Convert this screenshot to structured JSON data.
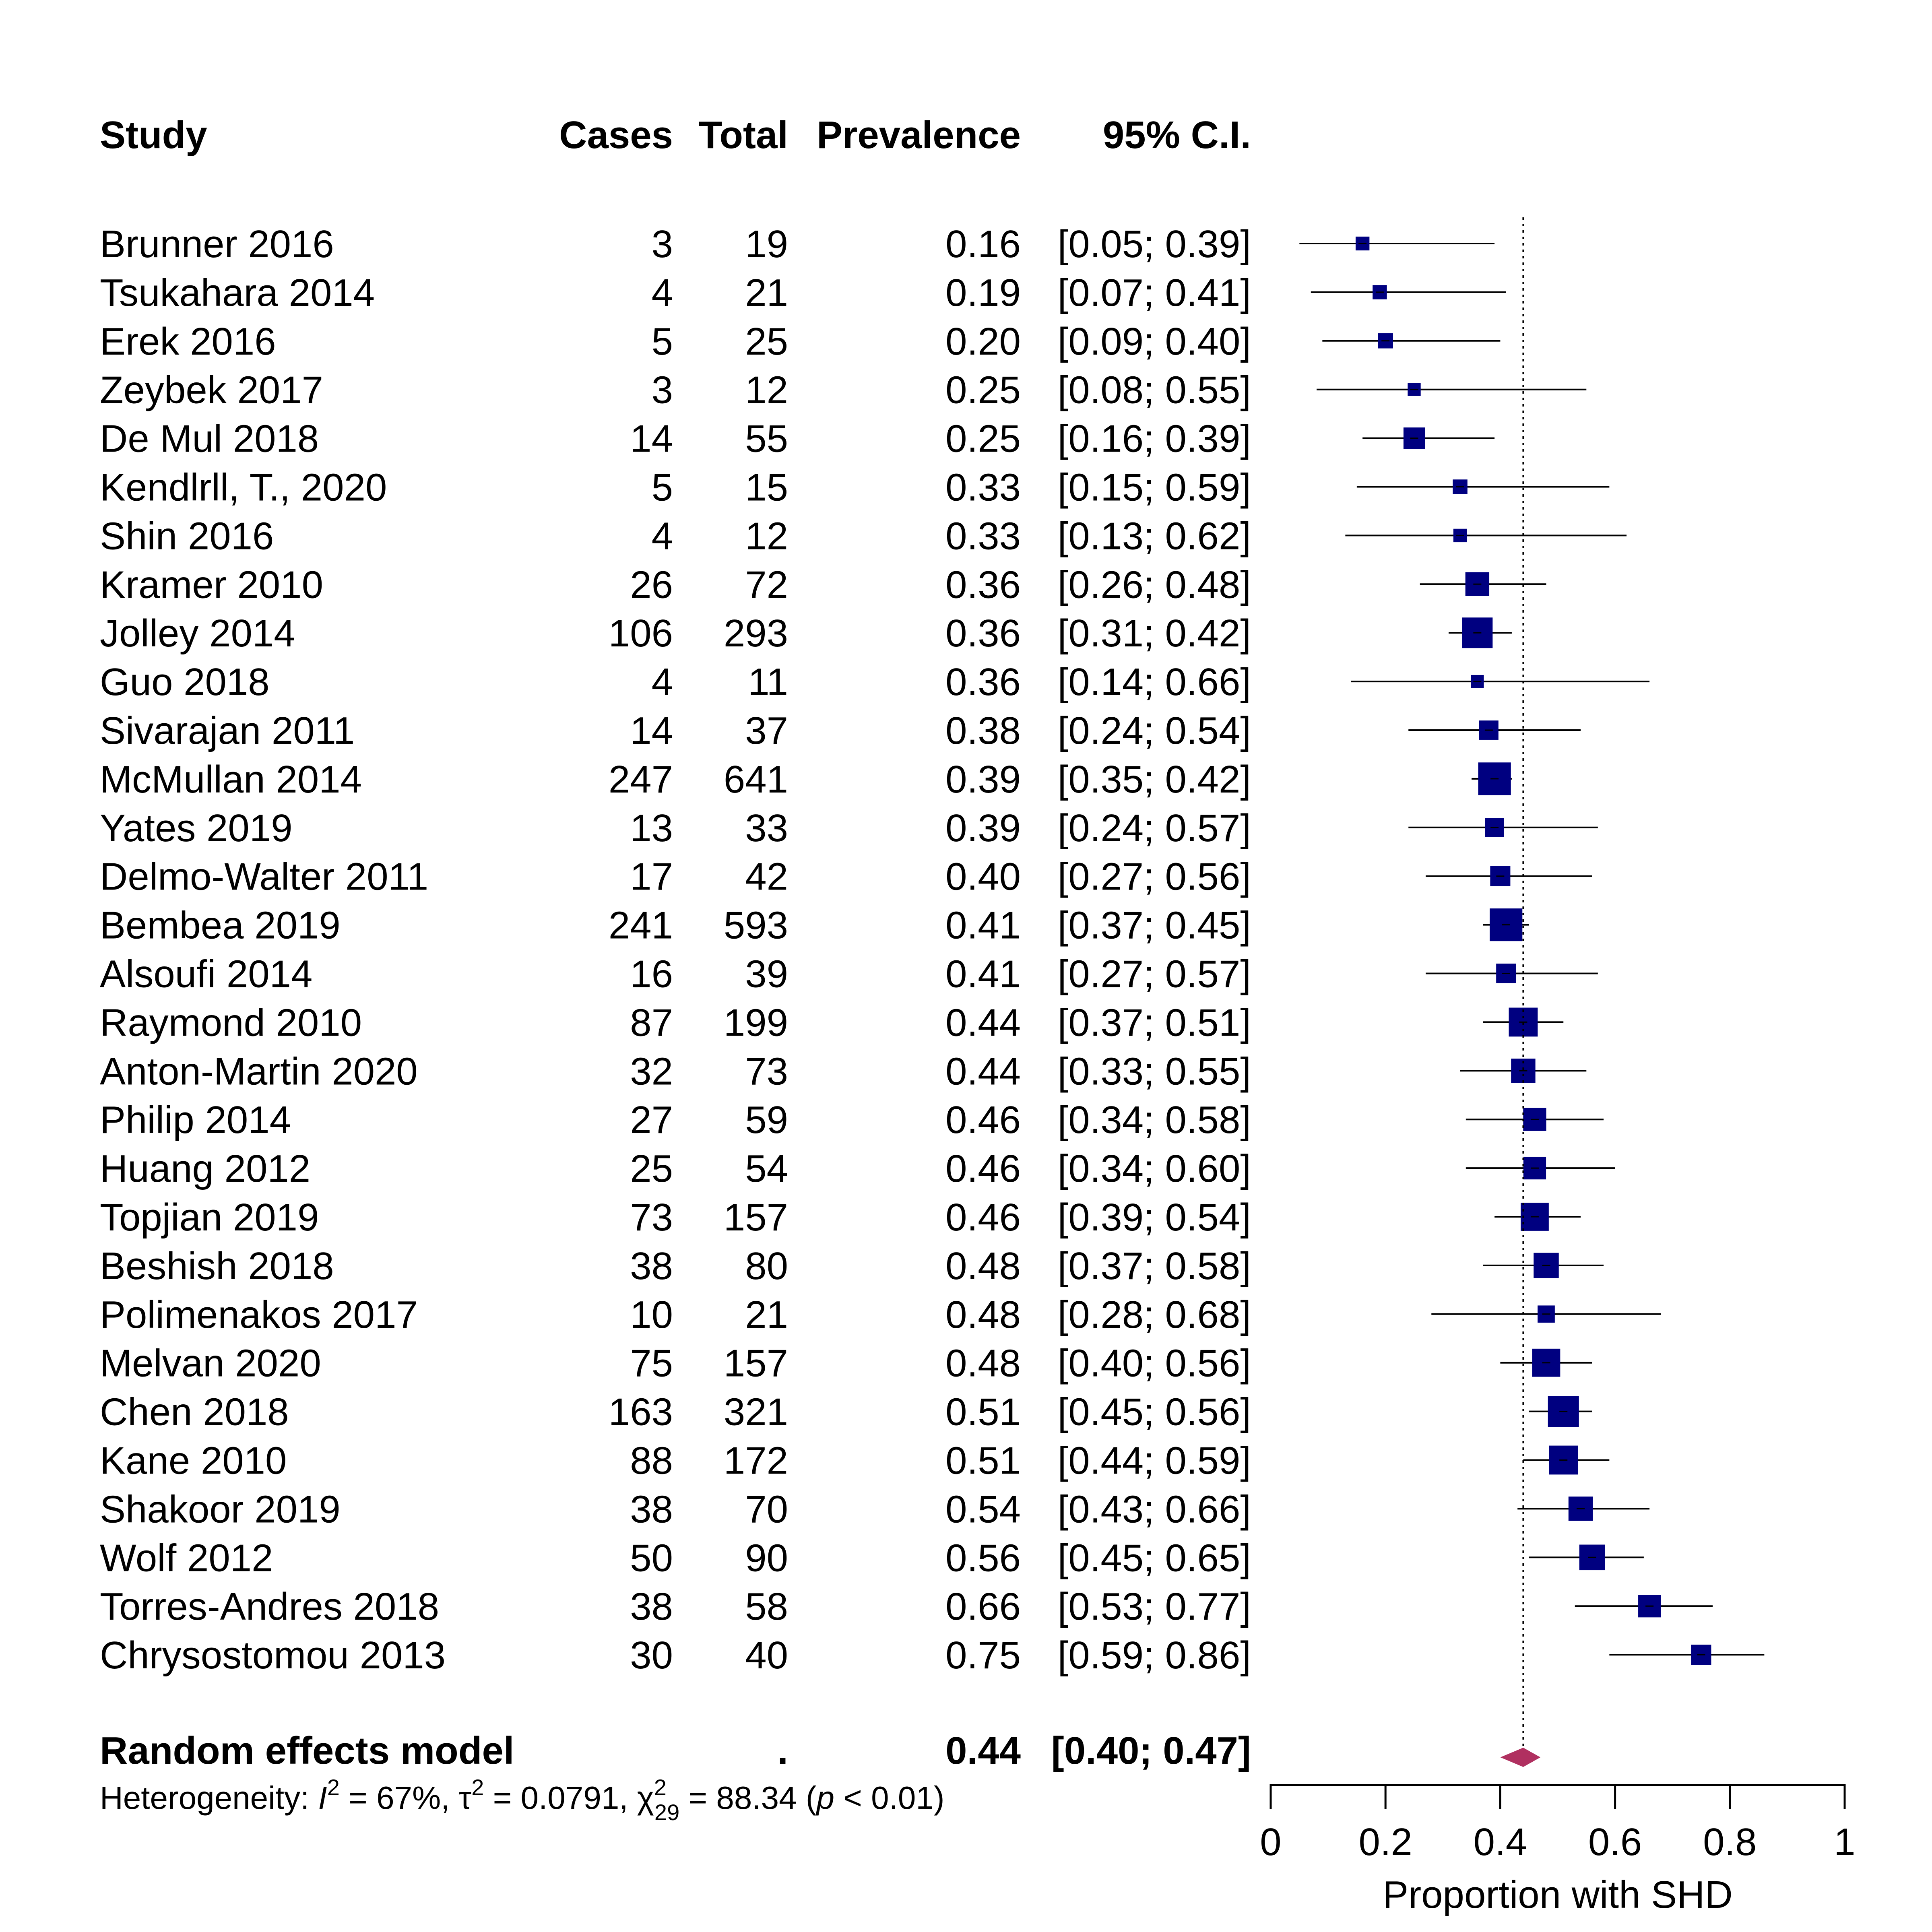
{
  "chart_data": {
    "type": "forest",
    "columns": {
      "study": "Study",
      "cases": "Cases",
      "total": "Total",
      "prevalence": "Prevalence",
      "ci": "95% C.I."
    },
    "studies": [
      {
        "study": "Brunner 2016",
        "cases": "3",
        "total": "19",
        "prev": "0.16",
        "ci": "[0.05; 0.39]",
        "est": 0.16,
        "lo": 0.05,
        "hi": 0.39,
        "weight": 1.0
      },
      {
        "study": "Tsukahara 2014",
        "cases": "4",
        "total": "21",
        "prev": "0.19",
        "ci": "[0.07; 0.41]",
        "est": 0.19,
        "lo": 0.07,
        "hi": 0.41,
        "weight": 1.1
      },
      {
        "study": "Erek 2016",
        "cases": "5",
        "total": "25",
        "prev": "0.20",
        "ci": "[0.09; 0.40]",
        "est": 0.2,
        "lo": 0.09,
        "hi": 0.4,
        "weight": 1.3
      },
      {
        "study": "Zeybek 2017",
        "cases": "3",
        "total": "12",
        "prev": "0.25",
        "ci": "[0.08; 0.55]",
        "est": 0.25,
        "lo": 0.08,
        "hi": 0.55,
        "weight": 0.8
      },
      {
        "study": "De Mul 2018",
        "cases": "14",
        "total": "55",
        "prev": "0.25",
        "ci": "[0.16; 0.39]",
        "est": 0.25,
        "lo": 0.16,
        "hi": 0.39,
        "weight": 2.8
      },
      {
        "study": "Kendlrll, T., 2020",
        "cases": "5",
        "total": "15",
        "prev": "0.33",
        "ci": "[0.15; 0.59]",
        "est": 0.33,
        "lo": 0.15,
        "hi": 0.59,
        "weight": 1.2
      },
      {
        "study": "Shin 2016",
        "cases": "4",
        "total": "12",
        "prev": "0.33",
        "ci": "[0.13; 0.62]",
        "est": 0.33,
        "lo": 0.13,
        "hi": 0.62,
        "weight": 0.9
      },
      {
        "study": "Kramer 2010",
        "cases": "26",
        "total": "72",
        "prev": "0.36",
        "ci": "[0.26; 0.48]",
        "est": 0.36,
        "lo": 0.26,
        "hi": 0.48,
        "weight": 3.4
      },
      {
        "study": "Jolley 2014",
        "cases": "106",
        "total": "293",
        "prev": "0.36",
        "ci": "[0.31; 0.42]",
        "est": 0.36,
        "lo": 0.31,
        "hi": 0.42,
        "weight": 5.0
      },
      {
        "study": "Guo 2018",
        "cases": "4",
        "total": "11",
        "prev": "0.36",
        "ci": "[0.14; 0.66]",
        "est": 0.36,
        "lo": 0.14,
        "hi": 0.66,
        "weight": 0.8
      },
      {
        "study": "Sivarajan 2011",
        "cases": "14",
        "total": "37",
        "prev": "0.38",
        "ci": "[0.24; 0.54]",
        "est": 0.38,
        "lo": 0.24,
        "hi": 0.54,
        "weight": 2.3
      },
      {
        "study": "McMullan 2014",
        "cases": "247",
        "total": "641",
        "prev": "0.39",
        "ci": "[0.35; 0.42]",
        "est": 0.39,
        "lo": 0.35,
        "hi": 0.42,
        "weight": 5.5
      },
      {
        "study": "Yates 2019",
        "cases": "13",
        "total": "33",
        "prev": "0.39",
        "ci": "[0.24; 0.57]",
        "est": 0.39,
        "lo": 0.24,
        "hi": 0.57,
        "weight": 2.2
      },
      {
        "study": "Delmo-Walter 2011",
        "cases": "17",
        "total": "42",
        "prev": "0.40",
        "ci": "[0.27; 0.56]",
        "est": 0.4,
        "lo": 0.27,
        "hi": 0.56,
        "weight": 2.5
      },
      {
        "study": "Bembea 2019",
        "cases": "241",
        "total": "593",
        "prev": "0.41",
        "ci": "[0.37; 0.45]",
        "est": 0.41,
        "lo": 0.37,
        "hi": 0.45,
        "weight": 5.5
      },
      {
        "study": "Alsoufi 2014",
        "cases": "16",
        "total": "39",
        "prev": "0.41",
        "ci": "[0.27; 0.57]",
        "est": 0.41,
        "lo": 0.27,
        "hi": 0.57,
        "weight": 2.4
      },
      {
        "study": "Raymond 2010",
        "cases": "87",
        "total": "199",
        "prev": "0.44",
        "ci": "[0.37; 0.51]",
        "est": 0.44,
        "lo": 0.37,
        "hi": 0.51,
        "weight": 4.6
      },
      {
        "study": "Anton-Martin 2020",
        "cases": "32",
        "total": "73",
        "prev": "0.44",
        "ci": "[0.33; 0.55]",
        "est": 0.44,
        "lo": 0.33,
        "hi": 0.55,
        "weight": 3.5
      },
      {
        "study": "Philip 2014",
        "cases": "27",
        "total": "59",
        "prev": "0.46",
        "ci": "[0.34; 0.58]",
        "est": 0.46,
        "lo": 0.34,
        "hi": 0.58,
        "weight": 3.2
      },
      {
        "study": "Huang 2012",
        "cases": "25",
        "total": "54",
        "prev": "0.46",
        "ci": "[0.34; 0.60]",
        "est": 0.46,
        "lo": 0.34,
        "hi": 0.6,
        "weight": 3.1
      },
      {
        "study": "Topjian 2019",
        "cases": "73",
        "total": "157",
        "prev": "0.46",
        "ci": "[0.39; 0.54]",
        "est": 0.46,
        "lo": 0.39,
        "hi": 0.54,
        "weight": 4.4
      },
      {
        "study": "Beshish 2018",
        "cases": "38",
        "total": "80",
        "prev": "0.48",
        "ci": "[0.37; 0.58]",
        "est": 0.48,
        "lo": 0.37,
        "hi": 0.58,
        "weight": 3.7
      },
      {
        "study": "Polimenakos 2017",
        "cases": "10",
        "total": "21",
        "prev": "0.48",
        "ci": "[0.28; 0.68]",
        "est": 0.48,
        "lo": 0.28,
        "hi": 0.68,
        "weight": 1.8
      },
      {
        "study": "Melvan 2020",
        "cases": "75",
        "total": "157",
        "prev": "0.48",
        "ci": "[0.40; 0.56]",
        "est": 0.48,
        "lo": 0.4,
        "hi": 0.56,
        "weight": 4.4
      },
      {
        "study": "Chen 2018",
        "cases": "163",
        "total": "321",
        "prev": "0.51",
        "ci": "[0.45; 0.56]",
        "est": 0.51,
        "lo": 0.45,
        "hi": 0.56,
        "weight": 5.1
      },
      {
        "study": "Kane 2010",
        "cases": "88",
        "total": "172",
        "prev": "0.51",
        "ci": "[0.44; 0.59]",
        "est": 0.51,
        "lo": 0.44,
        "hi": 0.59,
        "weight": 4.6
      },
      {
        "study": "Shakoor 2019",
        "cases": "38",
        "total": "70",
        "prev": "0.54",
        "ci": "[0.43; 0.66]",
        "est": 0.54,
        "lo": 0.43,
        "hi": 0.66,
        "weight": 3.5
      },
      {
        "study": "Wolf 2012",
        "cases": "50",
        "total": "90",
        "prev": "0.56",
        "ci": "[0.45; 0.65]",
        "est": 0.56,
        "lo": 0.45,
        "hi": 0.65,
        "weight": 3.8
      },
      {
        "study": "Torres-Andres 2018",
        "cases": "38",
        "total": "58",
        "prev": "0.66",
        "ci": "[0.53; 0.77]",
        "est": 0.66,
        "lo": 0.53,
        "hi": 0.77,
        "weight": 3.1
      },
      {
        "study": "Chrysostomou 2013",
        "cases": "30",
        "total": "40",
        "prev": "0.75",
        "ci": "[0.59; 0.86]",
        "est": 0.75,
        "lo": 0.59,
        "hi": 0.86,
        "weight": 2.5
      }
    ],
    "summary": {
      "label": "Random effects model",
      "cases": ".",
      "prev": "0.44",
      "ci": "[0.40; 0.47]",
      "est": 0.44,
      "lo": 0.4,
      "hi": 0.47
    },
    "heterogeneity": {
      "label": "Heterogeneity: ",
      "i2_value": " = 67%, ",
      "tau2_value": " = 0.0791, ",
      "chi2_df": "29",
      "chi2_value": " = 88.34 (",
      "p_text": " < 0.01)"
    },
    "xaxis": {
      "label": "Proportion with SHD",
      "range": [
        0,
        1
      ],
      "ticks": [
        {
          "v": 0,
          "label": "0"
        },
        {
          "v": 0.2,
          "label": "0.2"
        },
        {
          "v": 0.4,
          "label": "0.4"
        },
        {
          "v": 0.6,
          "label": "0.6"
        },
        {
          "v": 0.8,
          "label": "0.8"
        },
        {
          "v": 1,
          "label": "1"
        }
      ]
    },
    "reference_line": 0.44,
    "colors": {
      "square": "#000080",
      "ci_line": "#000000",
      "diamond": "#B03060",
      "axis": "#000000"
    }
  }
}
